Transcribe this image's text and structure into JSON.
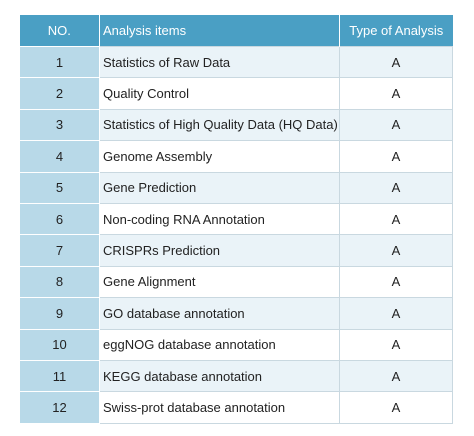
{
  "table": {
    "headers": {
      "no": "NO.",
      "item": "Analysis items",
      "type": "Type of Analysis"
    },
    "rows": [
      {
        "no": "1",
        "item": "Statistics of Raw Data",
        "type": "A"
      },
      {
        "no": "2",
        "item": "Quality Control",
        "type": "A"
      },
      {
        "no": "3",
        "item": "Statistics of High Quality Data (HQ Data)",
        "type": "A"
      },
      {
        "no": "4",
        "item": "Genome Assembly",
        "type": "A"
      },
      {
        "no": "5",
        "item": "Gene Prediction",
        "type": "A"
      },
      {
        "no": "6",
        "item": "Non-coding RNA Annotation",
        "type": "A"
      },
      {
        "no": "7",
        "item": "CRISPRs Prediction",
        "type": "A"
      },
      {
        "no": "8",
        "item": "Gene Alignment",
        "type": "A"
      },
      {
        "no": "9",
        "item": "GO database annotation",
        "type": "A"
      },
      {
        "no": "10",
        "item": "eggNOG database annotation",
        "type": "A"
      },
      {
        "no": "11",
        "item": "KEGG database annotation",
        "type": "A"
      },
      {
        "no": "12",
        "item": "Swiss-prot database annotation",
        "type": "A"
      }
    ],
    "colors": {
      "header_bg": "#4a9fc4",
      "number_cell_bg": "#b8d9e8",
      "stripe_bg": "#eaf3f8"
    }
  }
}
